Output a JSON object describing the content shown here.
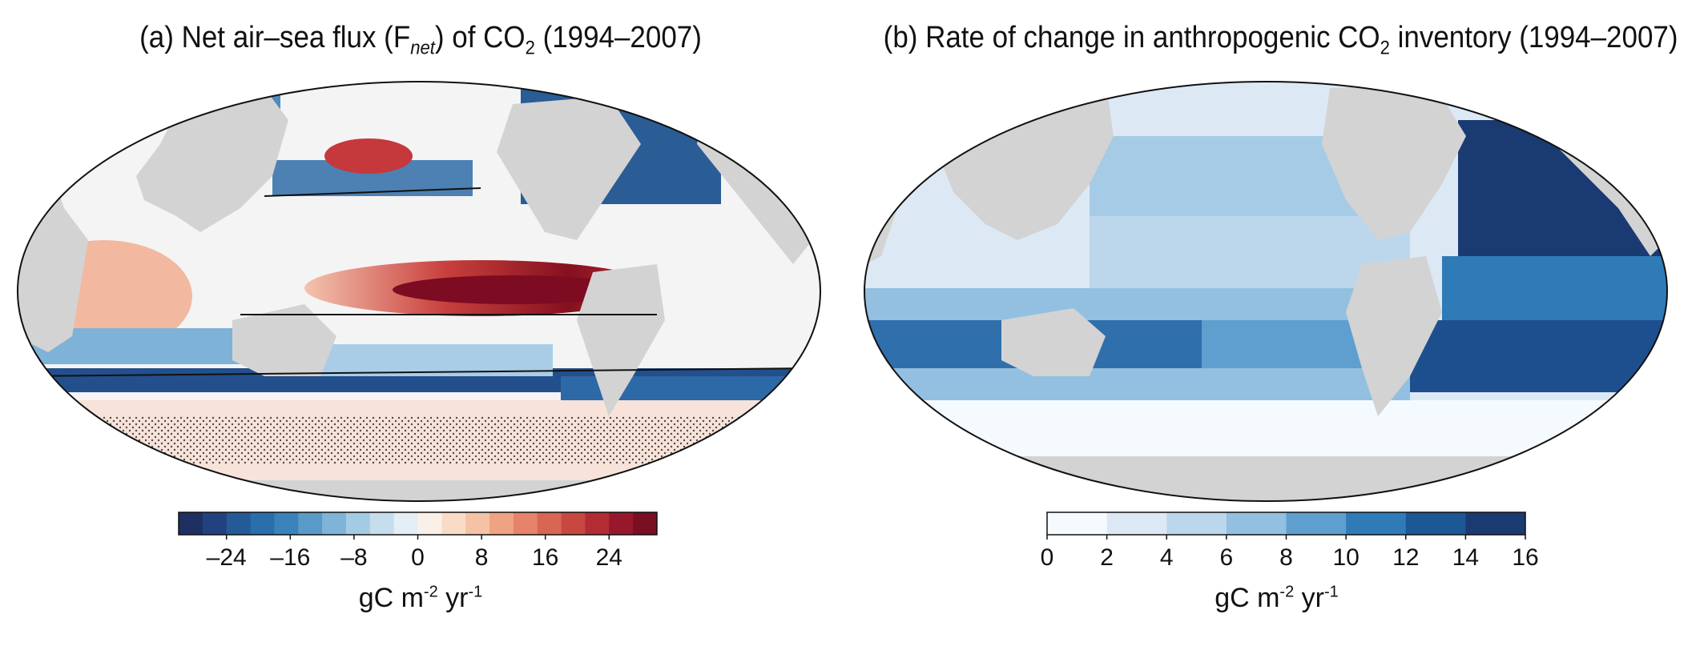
{
  "panel_a": {
    "title_pre": "(a) Net air–sea flux (F",
    "title_sub": "net",
    "title_mid": ") of CO",
    "title_sub2": "2",
    "title_post": " (1994–2007)",
    "colorbar": {
      "ticks": [
        "–24",
        "–16",
        "–8",
        "0",
        "8",
        "16",
        "24"
      ],
      "colors": [
        "#1f2f62",
        "#22427f",
        "#245a97",
        "#2a6eac",
        "#3a82ba",
        "#5a9ac8",
        "#7fb4d8",
        "#a4cbe4",
        "#c6ddee",
        "#e3eef6",
        "#fbf0e8",
        "#f9dcc8",
        "#f5c2a5",
        "#efa383",
        "#e6836a",
        "#d96553",
        "#c84741",
        "#b32c33",
        "#98182b",
        "#7a0e23"
      ],
      "label_text": "gC m",
      "label_sup1": "-2",
      "label_mid": " yr",
      "label_sup2": "-1"
    }
  },
  "panel_b": {
    "title_pre": "(b) Rate of change in anthropogenic CO",
    "title_sub": "2",
    "title_post": " inventory (1994–2007)",
    "colorbar": {
      "ticks": [
        "0",
        "2",
        "4",
        "6",
        "8",
        "10",
        "12",
        "14",
        "16"
      ],
      "colors": [
        "#f5faff",
        "#dce9f5",
        "#bcd7ec",
        "#93c0e0",
        "#5e9fcf",
        "#2f7bb8",
        "#1d5896",
        "#1a3a72"
      ],
      "label_text": "gC m",
      "label_sup1": "-2",
      "label_mid": " yr",
      "label_sup2": "-1"
    }
  },
  "colors": {
    "land": "#d3d3d3",
    "outline": "#111111"
  }
}
